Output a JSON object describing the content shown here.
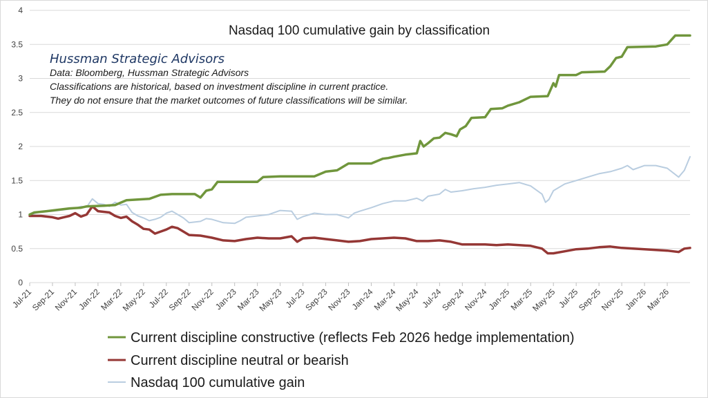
{
  "chart_data": {
    "type": "line",
    "title": "Nasdaq 100  cumulative gain by classification",
    "annotation": {
      "brand": "Hussman Strategic Advisors",
      "lines": [
        "Data: Bloomberg, Hussman Strategic Advisors",
        "Classifications are historical,  based on investment discipline in current practice.",
        "They do not ensure that the market outcomes of future classifications will be similar."
      ]
    },
    "ylim": [
      0,
      4
    ],
    "yticks": [
      "0",
      "0.5",
      "1",
      "1.5",
      "2",
      "2.5",
      "3",
      "3.5",
      "4"
    ],
    "xticks": [
      "Jul-21",
      "Sep-21",
      "Nov-21",
      "Jan-22",
      "Mar-22",
      "May-22",
      "Jul-22",
      "Sep-22",
      "Nov-22",
      "Jan-23",
      "Mar-23",
      "May-23",
      "Jul-23",
      "Sep-23",
      "Nov-23",
      "Jan-24",
      "Mar-24",
      "May-24",
      "Jul-24",
      "Sep-24",
      "Nov-24",
      "Jan-25",
      "Mar-25",
      "May-25",
      "Jul-25",
      "Sep-25",
      "Nov-25",
      "Jan-26",
      "Mar-26"
    ],
    "x_range_months": [
      0,
      58
    ],
    "grid": true,
    "legend_position": "bottom",
    "series": [
      {
        "name": "Current discipline constructive (reflects Feb 2026 hedge implementation)",
        "color": "#70963c",
        "points": [
          [
            0,
            1.0
          ],
          [
            0.4,
            1.03
          ],
          [
            1.5,
            1.05
          ],
          [
            2.5,
            1.07
          ],
          [
            3.5,
            1.09
          ],
          [
            4.5,
            1.1
          ],
          [
            5,
            1.12
          ],
          [
            6.5,
            1.13
          ],
          [
            7.5,
            1.14
          ],
          [
            8.5,
            1.21
          ],
          [
            9.5,
            1.22
          ],
          [
            10.5,
            1.23
          ],
          [
            11.5,
            1.29
          ],
          [
            12.5,
            1.3
          ],
          [
            14.5,
            1.3
          ],
          [
            15,
            1.25
          ],
          [
            15.5,
            1.35
          ],
          [
            16,
            1.37
          ],
          [
            16.5,
            1.48
          ],
          [
            18,
            1.48
          ],
          [
            20,
            1.48
          ],
          [
            20.5,
            1.55
          ],
          [
            22,
            1.56
          ],
          [
            25,
            1.56
          ],
          [
            26,
            1.63
          ],
          [
            27,
            1.65
          ],
          [
            28,
            1.75
          ],
          [
            30,
            1.75
          ],
          [
            31,
            1.82
          ],
          [
            31.5,
            1.83
          ],
          [
            32,
            1.85
          ],
          [
            33,
            1.88
          ],
          [
            34,
            1.9
          ],
          [
            34.3,
            2.08
          ],
          [
            34.6,
            2.0
          ],
          [
            35,
            2.05
          ],
          [
            35.5,
            2.12
          ],
          [
            36,
            2.13
          ],
          [
            36.5,
            2.2
          ],
          [
            37,
            2.18
          ],
          [
            37.5,
            2.15
          ],
          [
            37.8,
            2.25
          ],
          [
            38.3,
            2.3
          ],
          [
            38.8,
            2.42
          ],
          [
            40,
            2.43
          ],
          [
            40.5,
            2.55
          ],
          [
            41.5,
            2.56
          ],
          [
            42,
            2.6
          ],
          [
            43,
            2.65
          ],
          [
            44,
            2.73
          ],
          [
            45.5,
            2.74
          ],
          [
            46,
            2.93
          ],
          [
            46.2,
            2.88
          ],
          [
            46.5,
            3.05
          ],
          [
            48,
            3.05
          ],
          [
            48.5,
            3.09
          ],
          [
            50.5,
            3.1
          ],
          [
            51,
            3.18
          ],
          [
            51.5,
            3.3
          ],
          [
            52,
            3.32
          ],
          [
            52.5,
            3.46
          ],
          [
            55,
            3.47
          ],
          [
            56,
            3.5
          ],
          [
            56.7,
            3.63
          ],
          [
            58,
            3.63
          ]
        ]
      },
      {
        "name": "Current discipline neutral or bearish",
        "color": "#953735",
        "points": [
          [
            0,
            0.98
          ],
          [
            1,
            0.98
          ],
          [
            2,
            0.96
          ],
          [
            2.5,
            0.94
          ],
          [
            3,
            0.96
          ],
          [
            3.5,
            0.98
          ],
          [
            4,
            1.02
          ],
          [
            4.5,
            0.97
          ],
          [
            5,
            1.0
          ],
          [
            5.5,
            1.12
          ],
          [
            6,
            1.05
          ],
          [
            7,
            1.03
          ],
          [
            7.5,
            0.98
          ],
          [
            8,
            0.95
          ],
          [
            8.5,
            0.97
          ],
          [
            9,
            0.9
          ],
          [
            9.5,
            0.85
          ],
          [
            10,
            0.79
          ],
          [
            10.5,
            0.78
          ],
          [
            11,
            0.72
          ],
          [
            11.5,
            0.75
          ],
          [
            12,
            0.78
          ],
          [
            12.5,
            0.82
          ],
          [
            13,
            0.8
          ],
          [
            13.5,
            0.75
          ],
          [
            14,
            0.7
          ],
          [
            15,
            0.69
          ],
          [
            16,
            0.66
          ],
          [
            17,
            0.62
          ],
          [
            18,
            0.61
          ],
          [
            19,
            0.64
          ],
          [
            20,
            0.66
          ],
          [
            21,
            0.65
          ],
          [
            22,
            0.65
          ],
          [
            23,
            0.68
          ],
          [
            23.5,
            0.6
          ],
          [
            24,
            0.65
          ],
          [
            25,
            0.66
          ],
          [
            26,
            0.64
          ],
          [
            27,
            0.62
          ],
          [
            28,
            0.6
          ],
          [
            29,
            0.61
          ],
          [
            30,
            0.64
          ],
          [
            31,
            0.65
          ],
          [
            32,
            0.66
          ],
          [
            33,
            0.65
          ],
          [
            34,
            0.61
          ],
          [
            35,
            0.61
          ],
          [
            36,
            0.62
          ],
          [
            37,
            0.6
          ],
          [
            38,
            0.56
          ],
          [
            39,
            0.56
          ],
          [
            40,
            0.56
          ],
          [
            41,
            0.55
          ],
          [
            42,
            0.56
          ],
          [
            43,
            0.55
          ],
          [
            44,
            0.54
          ],
          [
            45,
            0.5
          ],
          [
            45.5,
            0.43
          ],
          [
            46,
            0.43
          ],
          [
            47,
            0.46
          ],
          [
            48,
            0.49
          ],
          [
            49,
            0.5
          ],
          [
            50,
            0.52
          ],
          [
            51,
            0.53
          ],
          [
            52,
            0.51
          ],
          [
            53,
            0.5
          ],
          [
            54,
            0.49
          ],
          [
            55,
            0.48
          ],
          [
            56,
            0.47
          ],
          [
            57,
            0.45
          ],
          [
            57.5,
            0.5
          ],
          [
            58,
            0.51
          ]
        ]
      },
      {
        "name": "Nasdaq 100 cumulative gain",
        "color": "#b9cde0",
        "points": [
          [
            0,
            0.98
          ],
          [
            0.5,
            1.02
          ],
          [
            1,
            1.04
          ],
          [
            2,
            1.05
          ],
          [
            3,
            1.07
          ],
          [
            4,
            1.09
          ],
          [
            4.5,
            1.12
          ],
          [
            5,
            1.11
          ],
          [
            5.5,
            1.23
          ],
          [
            6,
            1.16
          ],
          [
            6.5,
            1.15
          ],
          [
            7,
            1.12
          ],
          [
            7.5,
            1.18
          ],
          [
            8,
            1.14
          ],
          [
            8.5,
            1.15
          ],
          [
            9,
            1.03
          ],
          [
            9.5,
            0.98
          ],
          [
            10,
            0.95
          ],
          [
            10.5,
            0.91
          ],
          [
            11,
            0.93
          ],
          [
            11.5,
            0.96
          ],
          [
            12,
            1.02
          ],
          [
            12.5,
            1.05
          ],
          [
            13,
            1.0
          ],
          [
            13.5,
            0.95
          ],
          [
            14,
            0.88
          ],
          [
            15,
            0.9
          ],
          [
            15.5,
            0.94
          ],
          [
            16,
            0.93
          ],
          [
            17,
            0.88
          ],
          [
            18,
            0.87
          ],
          [
            18.5,
            0.91
          ],
          [
            19,
            0.96
          ],
          [
            20,
            0.98
          ],
          [
            21,
            1.0
          ],
          [
            22,
            1.06
          ],
          [
            23,
            1.05
          ],
          [
            23.5,
            0.93
          ],
          [
            24,
            0.97
          ],
          [
            25,
            1.02
          ],
          [
            26,
            1.0
          ],
          [
            27,
            1.0
          ],
          [
            28,
            0.95
          ],
          [
            28.5,
            1.02
          ],
          [
            29,
            1.05
          ],
          [
            30,
            1.1
          ],
          [
            31,
            1.16
          ],
          [
            32,
            1.2
          ],
          [
            33,
            1.2
          ],
          [
            34,
            1.24
          ],
          [
            34.5,
            1.2
          ],
          [
            35,
            1.27
          ],
          [
            36,
            1.3
          ],
          [
            36.5,
            1.37
          ],
          [
            37,
            1.33
          ],
          [
            38,
            1.35
          ],
          [
            39,
            1.38
          ],
          [
            40,
            1.4
          ],
          [
            41,
            1.43
          ],
          [
            42,
            1.45
          ],
          [
            43,
            1.47
          ],
          [
            44,
            1.42
          ],
          [
            45,
            1.3
          ],
          [
            45.3,
            1.18
          ],
          [
            45.6,
            1.22
          ],
          [
            46,
            1.35
          ],
          [
            47,
            1.45
          ],
          [
            48,
            1.5
          ],
          [
            49,
            1.55
          ],
          [
            50,
            1.6
          ],
          [
            51,
            1.63
          ],
          [
            52,
            1.68
          ],
          [
            52.5,
            1.72
          ],
          [
            53,
            1.66
          ],
          [
            54,
            1.72
          ],
          [
            55,
            1.72
          ],
          [
            56,
            1.68
          ],
          [
            57,
            1.55
          ],
          [
            57.5,
            1.65
          ],
          [
            58,
            1.85
          ]
        ]
      }
    ]
  }
}
